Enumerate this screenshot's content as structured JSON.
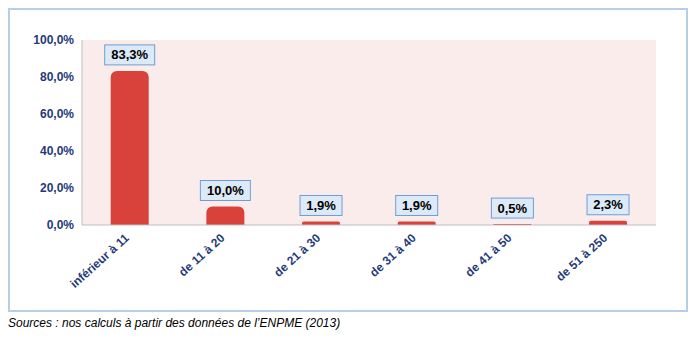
{
  "chart_data": {
    "type": "bar",
    "categories": [
      "inférieur à 11",
      "de 11 à 20",
      "de 21 à 30",
      "de 31 à 40",
      "de 41 à 50",
      "de 51 à 250"
    ],
    "values": [
      83.3,
      10.0,
      1.9,
      1.9,
      0.5,
      2.3
    ],
    "value_labels": [
      "83,3%",
      "10,0%",
      "1,9%",
      "1,9%",
      "0,5%",
      "2,3%"
    ],
    "color": "#d9413b",
    "ylim": [
      0,
      100
    ],
    "yticks": [
      {
        "value": 0,
        "label": "0,0%"
      },
      {
        "value": 20,
        "label": "20,0%"
      },
      {
        "value": 40,
        "label": "40,0%"
      },
      {
        "value": 60,
        "label": "60,0%"
      },
      {
        "value": 80,
        "label": "80,0%"
      },
      {
        "value": 100,
        "label": "100,0%"
      }
    ],
    "grid": false,
    "data_labels": true,
    "annotations": [
      "Sources : nos calculs à partir des données de l’ENPME (2013)"
    ]
  }
}
